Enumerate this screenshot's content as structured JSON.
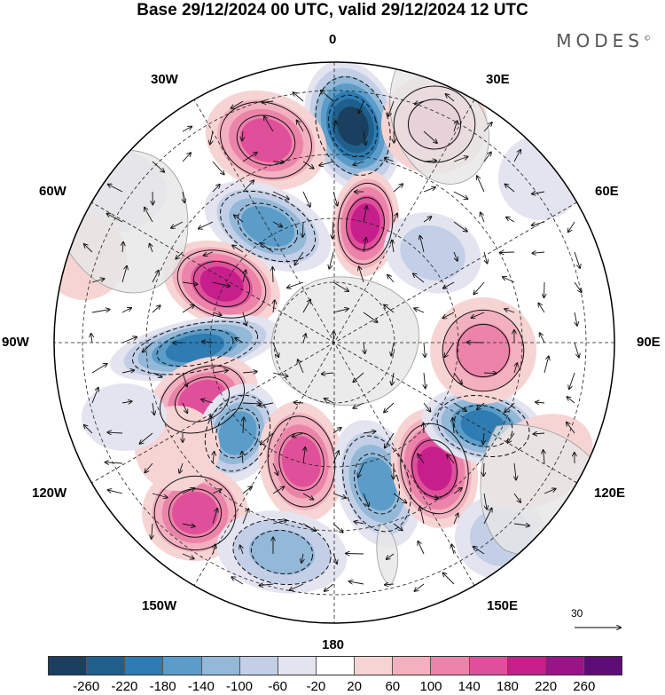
{
  "title": "Base 29/12/2024 00 UTC, valid 29/12/2024 12 UTC",
  "brand": "MODES",
  "brand_mark": "©",
  "longitude_labels": {
    "top": "0",
    "top_right": "30E",
    "right_upper": "60E",
    "right": "90E",
    "right_lower": "120E",
    "bottom_right": "150E",
    "bottom": "180",
    "bottom_left": "150W",
    "left_lower": "120W",
    "left": "90W",
    "left_upper": "60W",
    "top_left": "30W"
  },
  "reference_vector": "30",
  "colorbar": {
    "colors": [
      "#1b3f5e",
      "#1f5f8c",
      "#2e7cb2",
      "#5b9cc8",
      "#93b8d8",
      "#c2cfe6",
      "#e4e4f0",
      "#ffffff",
      "#f7d4d4",
      "#f3b0bf",
      "#ec84aa",
      "#e0509a",
      "#c61f8c",
      "#9c1287",
      "#5e0d76"
    ],
    "ticks": [
      "-260",
      "-220",
      "-180",
      "-140",
      "-100",
      "-60",
      "-20",
      "20",
      "60",
      "100",
      "140",
      "180",
      "220",
      "260"
    ]
  },
  "map_colors": {
    "land": "#e6e6e6",
    "coast": "#9a9a9a",
    "grid": "#222222",
    "arrow": "#111111",
    "contour": "#111111"
  }
}
